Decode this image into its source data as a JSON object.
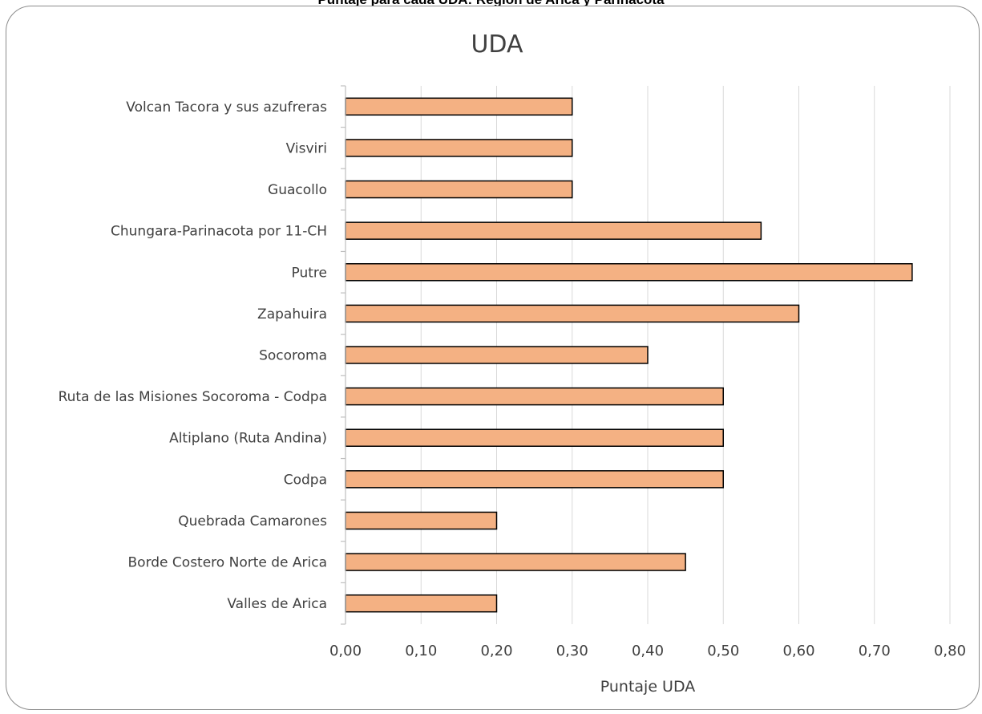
{
  "caption": "Puntaje para cada UDA: Región de Arica y Parinacota",
  "chart_data": {
    "type": "bar",
    "orientation": "horizontal",
    "title": "UDA",
    "xlabel": "Puntaje UDA",
    "ylabel": "",
    "xlim": [
      0,
      0.8
    ],
    "x_ticks": [
      "0,00",
      "0,10",
      "0,20",
      "0,30",
      "0,40",
      "0,50",
      "0,60",
      "0,70",
      "0,80"
    ],
    "grid": "vertical",
    "bar_color": "#f4b183",
    "bar_edge_color": "#000000",
    "categories": [
      "Volcan Tacora y sus azufreras",
      "Visviri",
      "Guacollo",
      "Chungara-Parinacota por 11-CH",
      "Putre",
      "Zapahuira",
      "Socoroma",
      "Ruta de las Misiones Socoroma - Codpa",
      "Altiplano (Ruta Andina)",
      "Codpa",
      "Quebrada Camarones",
      "Borde Costero Norte de Arica",
      "Valles de Arica"
    ],
    "values": [
      0.3,
      0.3,
      0.3,
      0.55,
      0.75,
      0.6,
      0.4,
      0.5,
      0.5,
      0.5,
      0.2,
      0.45,
      0.2
    ]
  }
}
